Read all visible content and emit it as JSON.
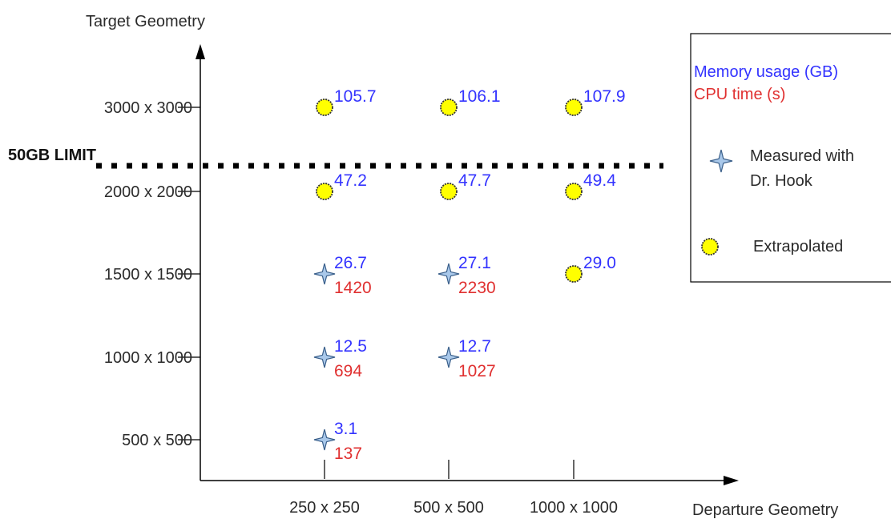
{
  "chart_data": {
    "type": "scatter",
    "title": "",
    "xlabel": "Departure Geometry",
    "ylabel": "Target Geometry",
    "x_categories": [
      "250 x 250",
      "500 x 500",
      "1000 x 1000"
    ],
    "y_categories": [
      "500 x 500",
      "1000 x 1000",
      "1500 x 1500",
      "2000 x 2000",
      "3000 x 3000"
    ],
    "points": [
      {
        "x": "250 x 250",
        "y": "500 x 500",
        "status": "measured",
        "memory_gb": "3.1",
        "cpu_s": "137"
      },
      {
        "x": "250 x 250",
        "y": "1000 x 1000",
        "status": "measured",
        "memory_gb": "12.5",
        "cpu_s": "694"
      },
      {
        "x": "500 x 500",
        "y": "1000 x 1000",
        "status": "measured",
        "memory_gb": "12.7",
        "cpu_s": "1027"
      },
      {
        "x": "250 x 250",
        "y": "1500 x 1500",
        "status": "measured",
        "memory_gb": "26.7",
        "cpu_s": "1420"
      },
      {
        "x": "500 x 500",
        "y": "1500 x 1500",
        "status": "measured",
        "memory_gb": "27.1",
        "cpu_s": "2230"
      },
      {
        "x": "1000 x 1000",
        "y": "1500 x 1500",
        "status": "extrapolated",
        "memory_gb": "29.0",
        "cpu_s": ""
      },
      {
        "x": "250 x 250",
        "y": "2000 x 2000",
        "status": "extrapolated",
        "memory_gb": "47.2",
        "cpu_s": ""
      },
      {
        "x": "500 x 500",
        "y": "2000 x 2000",
        "status": "extrapolated",
        "memory_gb": "47.7",
        "cpu_s": ""
      },
      {
        "x": "1000 x 1000",
        "y": "2000 x 2000",
        "status": "extrapolated",
        "memory_gb": "49.4",
        "cpu_s": ""
      },
      {
        "x": "250 x 250",
        "y": "3000 x 3000",
        "status": "extrapolated",
        "memory_gb": "105.7",
        "cpu_s": ""
      },
      {
        "x": "500 x 500",
        "y": "3000 x 3000",
        "status": "extrapolated",
        "memory_gb": "106.1",
        "cpu_s": ""
      },
      {
        "x": "1000 x 1000",
        "y": "3000 x 3000",
        "status": "extrapolated",
        "memory_gb": "107.9",
        "cpu_s": ""
      }
    ],
    "limit_line": {
      "label": "50GB LIMIT",
      "between": [
        "2000 x 2000",
        "3000 x 3000"
      ],
      "style": "dotted"
    },
    "legend": {
      "position": "top-right",
      "memory_label": "Memory usage (GB)",
      "cpu_label": "CPU time (s)",
      "measured_label_line1": "Measured with",
      "measured_label_line2": "Dr. Hook",
      "extrapolated_label": "Extrapolated"
    },
    "colors": {
      "memory": "#3333ff",
      "cpu": "#e03030",
      "extrapolated_fill": "#ffff00",
      "extrapolated_stroke": "#333333",
      "measured_fill": "#a9c8ea",
      "measured_stroke": "#3a5f8a",
      "axis": "#000000"
    },
    "grid": false
  }
}
